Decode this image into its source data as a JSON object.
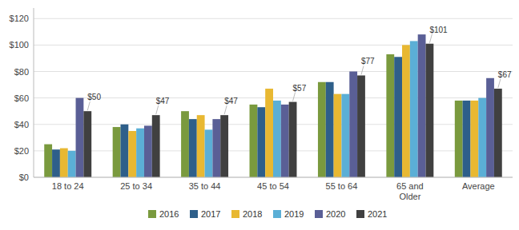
{
  "chart_data": {
    "type": "bar",
    "categories": [
      "18 to 24",
      "25 to 34",
      "35 to 44",
      "45 to 54",
      "55 to 64",
      "65 and\nOlder",
      "Average"
    ],
    "series": [
      {
        "name": "2016",
        "color": "#7a9a3e",
        "values": [
          25,
          38,
          50,
          55,
          72,
          93,
          58
        ]
      },
      {
        "name": "2017",
        "color": "#2e5f8a",
        "values": [
          21,
          40,
          44,
          53,
          72,
          91,
          58
        ]
      },
      {
        "name": "2018",
        "color": "#e8b832",
        "values": [
          22,
          35,
          47,
          67,
          63,
          100,
          58
        ]
      },
      {
        "name": "2019",
        "color": "#5bafd6",
        "values": [
          20,
          37,
          36,
          58,
          63,
          103,
          60
        ]
      },
      {
        "name": "2020",
        "color": "#5a5f96",
        "values": [
          60,
          39,
          44,
          55,
          80,
          108,
          75
        ]
      },
      {
        "name": "2021",
        "color": "#404040",
        "values": [
          50,
          47,
          47,
          57,
          77,
          101,
          67
        ],
        "data_labels": true,
        "value_labels": [
          "$50",
          "$47",
          "$47",
          "$57",
          "$77",
          "$101",
          "$67"
        ]
      }
    ],
    "ylim": [
      0,
      128
    ],
    "yticks": [
      {
        "value": 0,
        "label": "$0"
      },
      {
        "value": 20,
        "label": "$20"
      },
      {
        "value": 40,
        "label": "$40"
      },
      {
        "value": 60,
        "label": "$60"
      },
      {
        "value": 80,
        "label": "$80"
      },
      {
        "value": 100,
        "label": "$100"
      },
      {
        "value": 120,
        "label": "$120"
      }
    ],
    "grid": true,
    "legend": "bottom"
  }
}
